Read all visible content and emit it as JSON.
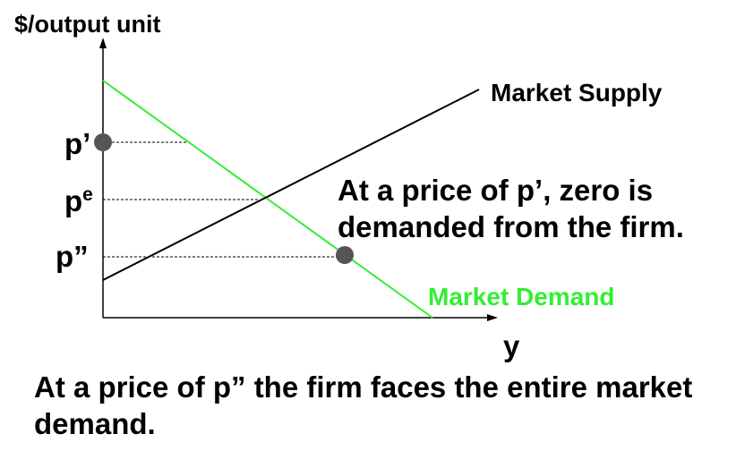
{
  "diagram": {
    "y_axis_label": "$/output unit",
    "x_axis_label": "y",
    "price_labels": {
      "p_prime": "p’",
      "p_e_base": "p",
      "p_e_sup": "e",
      "p_double": "p”"
    },
    "supply_label": "Market Supply",
    "demand_label": "Market Demand",
    "colors": {
      "demand": "#33ee33",
      "supply": "#000000",
      "dot": "#555555"
    }
  },
  "notes": {
    "p_prime": "At a price of p’, zero is demanded from the firm.",
    "p_double": "At a price of p” the firm faces the entire market demand."
  }
}
